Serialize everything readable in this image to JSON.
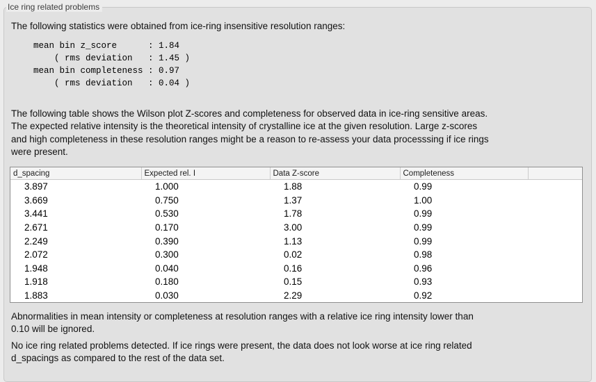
{
  "colors": {
    "page_bg": "#ececec",
    "panel_bg": "#e1e1e1",
    "panel_border": "#c8c8c8",
    "table_border": "#8f8f8f",
    "table_header_bg": "#f4f4f4"
  },
  "panel": {
    "title": "Ice ring related problems"
  },
  "paragraphs": {
    "intro": "The following statistics were obtained from ice-ring insensitive resolution ranges:",
    "table_description": "The following table shows the Wilson plot Z-scores and completeness for observed data in ice-ring sensitive areas.\nThe expected relative intensity is the theoretical intensity of crystalline ice at the given resolution. Large z-scores\nand high completeness in these resolution ranges might be a reason to re-assess your data processsing if ice rings\nwere present.",
    "ignore_note": "Abnormalities in mean intensity or completeness at resolution ranges with a relative ice ring intensity lower than\n0.10 will be ignored.",
    "conclusion": "No ice ring related problems detected. If ice rings were present, the data does not look worse at ice ring related\nd_spacings as compared to the rest of the data set."
  },
  "stats_block": {
    "text": "mean bin z_score      : 1.84\n    ( rms deviation   : 1.45 )\nmean bin completeness : 0.97\n    ( rms deviation   : 0.04 )"
  },
  "table": {
    "columns": [
      "d_spacing",
      "Expected rel. I",
      "Data Z-score",
      "Completeness"
    ],
    "rows": [
      [
        "3.897",
        "1.000",
        "1.88",
        "0.99"
      ],
      [
        "3.669",
        "0.750",
        "1.37",
        "1.00"
      ],
      [
        "3.441",
        "0.530",
        "1.78",
        "0.99"
      ],
      [
        "2.671",
        "0.170",
        "3.00",
        "0.99"
      ],
      [
        "2.249",
        "0.390",
        "1.13",
        "0.99"
      ],
      [
        "2.072",
        "0.300",
        "0.02",
        "0.98"
      ],
      [
        "1.948",
        "0.040",
        "0.16",
        "0.96"
      ],
      [
        "1.918",
        "0.180",
        "0.15",
        "0.93"
      ],
      [
        "1.883",
        "0.030",
        "2.29",
        "0.92"
      ]
    ]
  }
}
